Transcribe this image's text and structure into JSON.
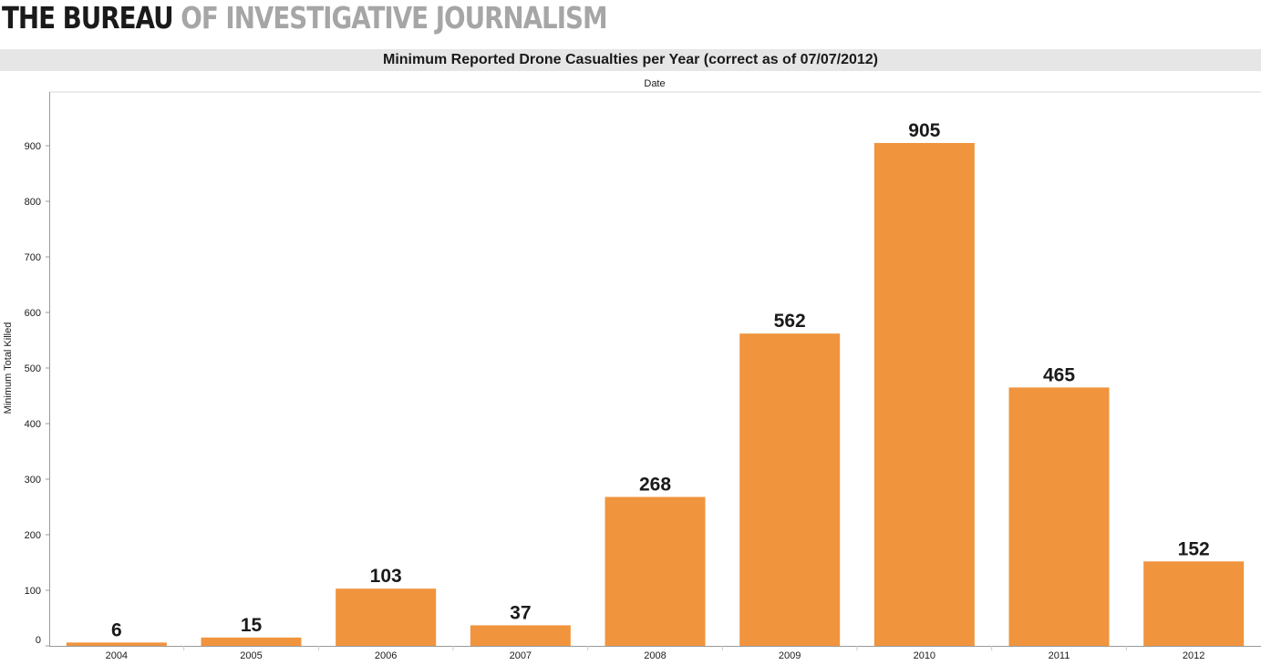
{
  "logo": {
    "dark_text": "THE BUREAU",
    "light_text": "OF INVESTIGATIVE JOURNALISM"
  },
  "colors": {
    "bar": "#f0943e",
    "axis": "#999999",
    "text": "#1a1a1a"
  },
  "chart_data": {
    "type": "bar",
    "title": "Minimum Reported Drone Casualties per Year (correct as of 07/07/2012)",
    "xlabel": "Date",
    "ylabel": "Minimum Total Killed",
    "categories": [
      "2004",
      "2005",
      "2006",
      "2007",
      "2008",
      "2009",
      "2010",
      "2011",
      "2012"
    ],
    "values": [
      6,
      15,
      103,
      37,
      268,
      562,
      905,
      465,
      152
    ],
    "data_labels": [
      "6",
      "15",
      "103",
      "37",
      "268",
      "562",
      "905",
      "465",
      "152"
    ],
    "yticks": [
      0,
      100,
      200,
      300,
      400,
      500,
      600,
      700,
      800,
      900
    ],
    "ylim": [
      0,
      1000
    ],
    "grid": false,
    "legend": "none",
    "xlabel_position": "top"
  }
}
